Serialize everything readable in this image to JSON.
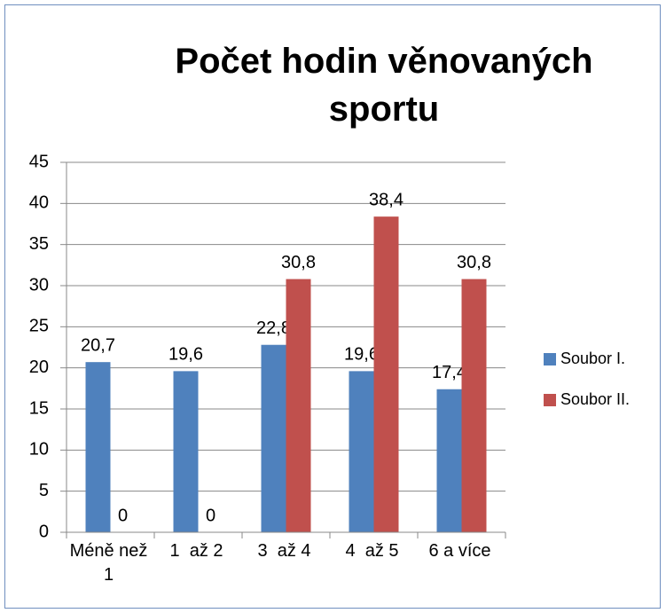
{
  "chart_data": {
    "type": "bar",
    "title": "Počet hodin věnovaných sportu",
    "categories": [
      "Méně než 1",
      "1  až 2",
      "3  až 4",
      "4  až 5",
      "6 a více"
    ],
    "series": [
      {
        "name": "Soubor I.",
        "color": "#4f81bd",
        "values": [
          20.7,
          19.6,
          22.8,
          19.6,
          17.4
        ],
        "value_labels": [
          "20,7",
          "19,6",
          "22,8",
          "19,6",
          "17,4"
        ]
      },
      {
        "name": "Soubor II.",
        "color": "#c0504d",
        "values": [
          0,
          0,
          30.8,
          38.4,
          30.8
        ],
        "value_labels": [
          "0",
          "0",
          "30,8",
          "38,4",
          "30,8"
        ]
      }
    ],
    "ylim": [
      0,
      45
    ],
    "yticks": [
      0,
      5,
      10,
      15,
      20,
      25,
      30,
      35,
      40,
      45
    ],
    "grid": true,
    "legend": "right"
  }
}
